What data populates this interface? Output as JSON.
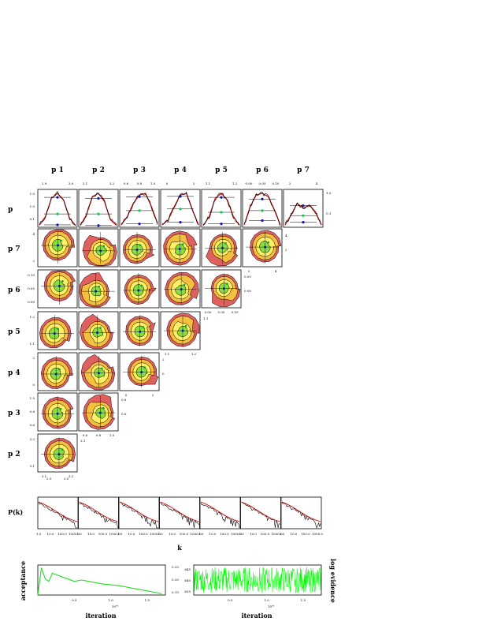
{
  "chart_data": [
    {
      "type": "corner",
      "parameters": [
        "p 1",
        "p 2",
        "p 3",
        "p 4",
        "p 5",
        "p 6",
        "p 7"
      ],
      "row_labels": [
        "p",
        "p 7",
        "p 6",
        "p 5",
        "p 4",
        "p 3",
        "p 2"
      ],
      "top_ticks": [
        [
          "2.9",
          "3.0"
        ],
        [
          "3.1",
          "3.2"
        ],
        [
          "0.6",
          "0.8",
          "1.0"
        ],
        [
          "0",
          "2"
        ],
        [
          "1.1",
          "1.2"
        ],
        [
          "0.00",
          "0.05",
          "0.10"
        ],
        [
          "2",
          "4"
        ]
      ],
      "marginal_left_ticks": [
        "1.0",
        "1.0",
        "0.1"
      ],
      "marginal_right_ticks": [
        "1.0",
        "0.1"
      ],
      "row_left_ticks": {
        "p 7": [
          "4",
          "2"
        ],
        "p 6": [
          "0.10",
          "0.05",
          "0.00"
        ],
        "p 5": [
          "1.2",
          "1.1"
        ],
        "p 4": [
          "2",
          "0"
        ],
        "p 3": [
          "1.0",
          "0.8",
          "0.6"
        ],
        "p 2": [
          "3.2",
          "3.1"
        ]
      },
      "diagonal_ticks": {
        "p 7": [
          "2",
          "4"
        ],
        "p 6": [
          "0.00",
          "0.05",
          "0.10"
        ],
        "p 5": [
          "1.1",
          "1.2"
        ],
        "p 4": [
          "0",
          "2"
        ],
        "p 3": [
          "0.6",
          "0.8",
          "1.0"
        ],
        "p 2": [
          "3.1",
          "3.2"
        ],
        "p 1": [
          "2.9",
          "3.0"
        ]
      },
      "diagonal_right_ticks": {
        "p 7": [
          "4",
          "2"
        ],
        "p 6": [
          "0.05",
          "0.00"
        ],
        "p 5": [
          "1.1"
        ],
        "p 4": [
          "2",
          "0"
        ],
        "p 3": [
          "0.8",
          "0.6"
        ],
        "p 2": [
          "3.1"
        ]
      },
      "marginals": [
        {
          "name": "p 1",
          "x": [
            2.86,
            2.9,
            2.94,
            2.97,
            3.0,
            3.04,
            3.08
          ],
          "y": [
            0.04,
            0.3,
            0.85,
            1.0,
            0.8,
            0.25,
            0.03
          ],
          "points": [
            0.95,
            0.45,
            0.12
          ]
        },
        {
          "name": "p 2",
          "x": [
            3.05,
            3.1,
            3.14,
            3.17,
            3.2,
            3.24,
            3.28
          ],
          "y": [
            0.03,
            0.35,
            0.9,
            1.0,
            0.75,
            0.2,
            0.03
          ],
          "points": [
            0.92,
            0.45,
            0.1
          ]
        },
        {
          "name": "p 3",
          "x": [
            0.5,
            0.6,
            0.7,
            0.8,
            0.9,
            1.0,
            1.1
          ],
          "y": [
            0.05,
            0.3,
            0.7,
            0.95,
            1.0,
            0.6,
            0.1
          ],
          "points": [
            0.97,
            0.55,
            0.15
          ]
        },
        {
          "name": "p 4",
          "x": [
            -2,
            -1,
            0,
            1,
            2,
            3,
            4
          ],
          "y": [
            0.05,
            0.2,
            0.6,
            0.95,
            1.0,
            0.5,
            0.05
          ],
          "points": [
            0.98,
            0.6,
            0.2
          ]
        },
        {
          "name": "p 5",
          "x": [
            1.05,
            1.1,
            1.14,
            1.17,
            1.2,
            1.24,
            1.28
          ],
          "y": [
            0.03,
            0.3,
            0.85,
            1.0,
            0.8,
            0.3,
            0.03
          ],
          "points": [
            0.95,
            0.5,
            0.15
          ]
        },
        {
          "name": "p 6",
          "x": [
            -0.02,
            0.0,
            0.03,
            0.05,
            0.07,
            0.1,
            0.12
          ],
          "y": [
            0.05,
            0.6,
            0.95,
            1.0,
            0.9,
            0.5,
            0.05
          ],
          "points": [
            0.9,
            0.55,
            0.25
          ]
        },
        {
          "name": "p 7",
          "x": [
            1,
            2,
            2.5,
            3,
            3.5,
            4,
            5
          ],
          "y": [
            0.05,
            0.35,
            0.7,
            0.55,
            0.65,
            0.45,
            0.05
          ],
          "points": [
            0.7,
            0.4,
            0.2
          ]
        }
      ],
      "contour_colors": [
        "#e06060",
        "#f5c040",
        "#ffee66",
        "#88dd44"
      ]
    },
    {
      "type": "line",
      "ylabel": "P(k)",
      "xlabel": "k",
      "xscale": "log",
      "xlim": [
        1.0,
        1000.0
      ],
      "panel_ticks": [
        "1.0",
        "10.0",
        "100.0",
        "1000.0"
      ],
      "panel_count": 7,
      "series": [
        {
          "values": [
            1.0,
            0.92,
            0.82,
            0.7,
            0.58,
            0.46,
            0.36,
            0.28,
            0.22
          ]
        }
      ]
    },
    {
      "type": "line",
      "xlabel": "iteration",
      "ylabel": "acceptance",
      "x_multiplier": "10⁴⁰",
      "xticks": [
        "0.5",
        "1.0",
        "1.5"
      ],
      "right_ticks": [
        "0.25",
        "0.20",
        "0.15"
      ],
      "x": [
        0.0,
        0.05,
        0.1,
        0.15,
        0.2,
        0.3,
        0.4,
        0.5,
        0.6,
        0.7,
        0.8,
        0.9,
        1.0,
        1.1,
        1.2,
        1.3,
        1.4,
        1.5,
        1.6,
        1.7
      ],
      "values": [
        0.15,
        0.25,
        0.21,
        0.2,
        0.23,
        0.22,
        0.21,
        0.2,
        0.205,
        0.2,
        0.195,
        0.19,
        0.188,
        0.185,
        0.18,
        0.175,
        0.17,
        0.165,
        0.16,
        0.155
      ],
      "ylim": [
        0.15,
        0.26
      ],
      "xlim": [
        0.0,
        1.75
      ],
      "color": "#22dd22"
    },
    {
      "type": "line",
      "xlabel": "iteration",
      "ylabel": "log evidence",
      "x_multiplier": "10⁴⁰",
      "xticks": [
        "0.5",
        "1.0",
        "1.5"
      ],
      "left_ticks": [
        "645",
        "640",
        "635"
      ],
      "x_range": [
        0.0,
        1.75
      ],
      "band": [
        633,
        646
      ],
      "ylim": [
        632,
        647
      ],
      "color": "#00ff00"
    }
  ]
}
